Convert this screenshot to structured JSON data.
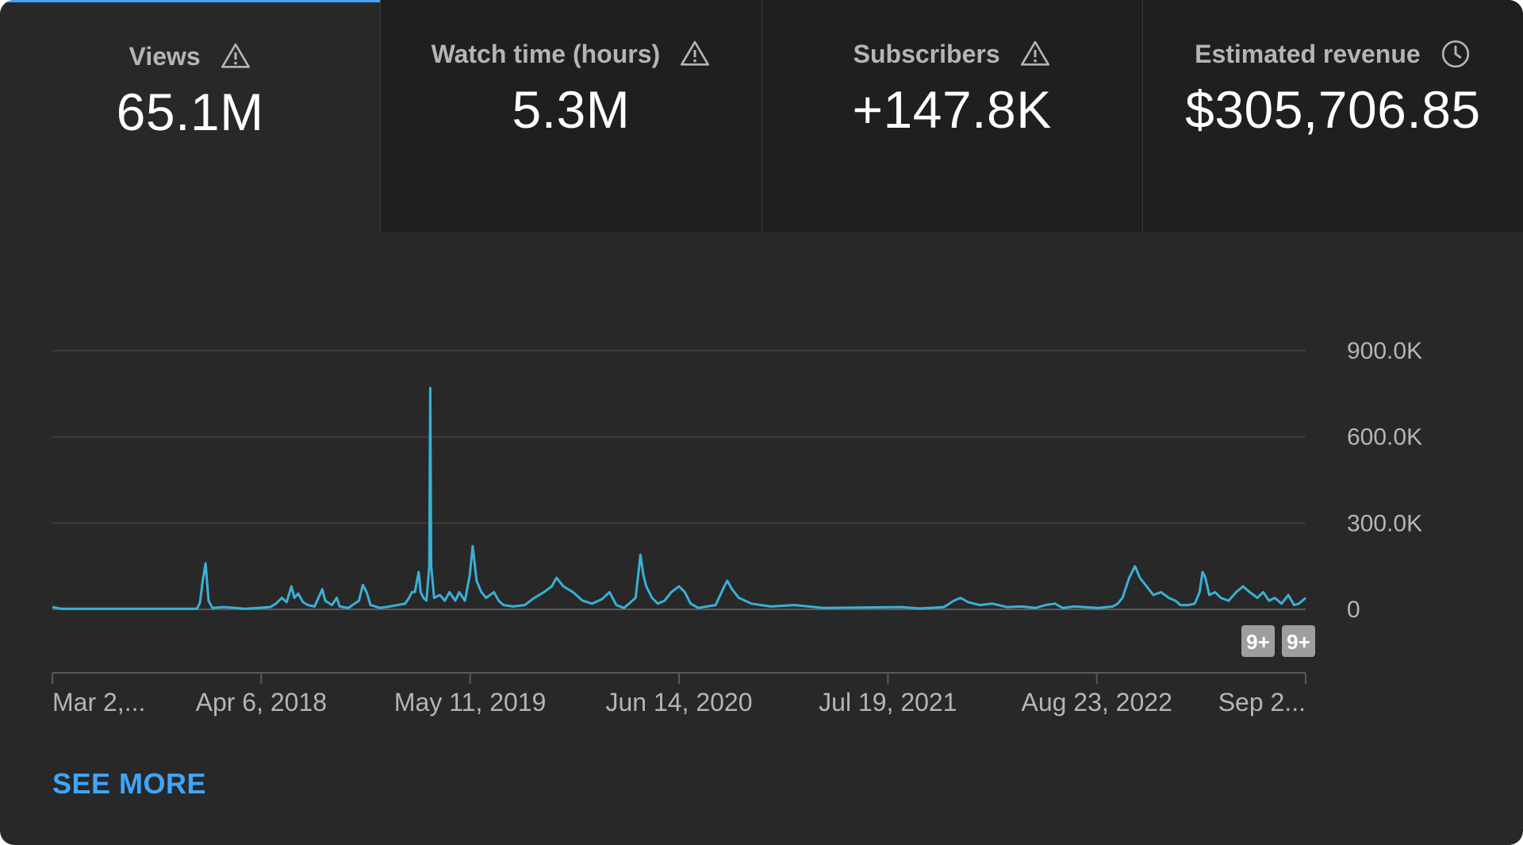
{
  "tabs": [
    {
      "label": "Views",
      "value": "65.1M",
      "icon": "warning-icon",
      "active": true
    },
    {
      "label": "Watch time (hours)",
      "value": "5.3M",
      "icon": "warning-icon",
      "active": false
    },
    {
      "label": "Subscribers",
      "value": "+147.8K",
      "icon": "warning-icon",
      "active": false
    },
    {
      "label": "Estimated revenue",
      "value": "$305,706.85",
      "icon": "clock-icon",
      "active": false
    }
  ],
  "colors": {
    "background": "#282828",
    "tab_background": "#1f1f1f",
    "accent": "#3ea6ff",
    "line": "#3ab0d6",
    "grid": "#3c3c3c",
    "badge": "#9e9e9e"
  },
  "chart_data": {
    "type": "line",
    "series": [
      {
        "values": [
          [
            0,
            8000
          ],
          [
            10,
            2000
          ],
          [
            150,
            2000
          ],
          [
            153,
            22000
          ],
          [
            156,
            100000
          ],
          [
            159,
            160000
          ],
          [
            162,
            30000
          ],
          [
            166,
            5000
          ],
          [
            178,
            8000
          ],
          [
            200,
            2000
          ],
          [
            226,
            8000
          ],
          [
            232,
            20000
          ],
          [
            238,
            40000
          ],
          [
            243,
            25000
          ],
          [
            248,
            80000
          ],
          [
            251,
            40000
          ],
          [
            255,
            55000
          ],
          [
            260,
            25000
          ],
          [
            265,
            15000
          ],
          [
            272,
            10000
          ],
          [
            280,
            70000
          ],
          [
            283,
            30000
          ],
          [
            290,
            15000
          ],
          [
            295,
            40000
          ],
          [
            298,
            10000
          ],
          [
            307,
            5000
          ],
          [
            318,
            30000
          ],
          [
            322,
            85000
          ],
          [
            326,
            60000
          ],
          [
            330,
            15000
          ],
          [
            340,
            5000
          ],
          [
            350,
            10000
          ],
          [
            366,
            20000
          ],
          [
            370,
            40000
          ],
          [
            373,
            60000
          ],
          [
            376,
            60000
          ],
          [
            380,
            130000
          ],
          [
            382,
            60000
          ],
          [
            385,
            40000
          ],
          [
            388,
            30000
          ],
          [
            391,
            150000
          ],
          [
            392,
            770000
          ],
          [
            393,
            150000
          ],
          [
            396,
            40000
          ],
          [
            402,
            50000
          ],
          [
            407,
            30000
          ],
          [
            412,
            60000
          ],
          [
            418,
            30000
          ],
          [
            422,
            60000
          ],
          [
            428,
            30000
          ],
          [
            433,
            120000
          ],
          [
            436,
            220000
          ],
          [
            440,
            100000
          ],
          [
            445,
            60000
          ],
          [
            450,
            40000
          ],
          [
            458,
            60000
          ],
          [
            463,
            30000
          ],
          [
            468,
            15000
          ],
          [
            478,
            10000
          ],
          [
            490,
            15000
          ],
          [
            500,
            40000
          ],
          [
            510,
            60000
          ],
          [
            518,
            80000
          ],
          [
            523,
            110000
          ],
          [
            530,
            80000
          ],
          [
            540,
            60000
          ],
          [
            550,
            30000
          ],
          [
            560,
            20000
          ],
          [
            570,
            35000
          ],
          [
            578,
            60000
          ],
          [
            585,
            15000
          ],
          [
            593,
            5000
          ],
          [
            605,
            40000
          ],
          [
            608,
            130000
          ],
          [
            610,
            190000
          ],
          [
            613,
            120000
          ],
          [
            616,
            80000
          ],
          [
            622,
            40000
          ],
          [
            628,
            20000
          ],
          [
            635,
            30000
          ],
          [
            642,
            60000
          ],
          [
            650,
            80000
          ],
          [
            656,
            60000
          ],
          [
            662,
            20000
          ],
          [
            670,
            5000
          ],
          [
            688,
            15000
          ],
          [
            697,
            80000
          ],
          [
            700,
            100000
          ],
          [
            705,
            70000
          ],
          [
            712,
            40000
          ],
          [
            725,
            20000
          ],
          [
            745,
            10000
          ],
          [
            770,
            15000
          ],
          [
            800,
            5000
          ],
          [
            880,
            8000
          ],
          [
            893,
            5000
          ],
          [
            900,
            3000
          ],
          [
            925,
            8000
          ],
          [
            935,
            30000
          ],
          [
            942,
            40000
          ],
          [
            950,
            25000
          ],
          [
            962,
            15000
          ],
          [
            975,
            20000
          ],
          [
            990,
            8000
          ],
          [
            1005,
            10000
          ],
          [
            1020,
            5000
          ],
          [
            1030,
            15000
          ],
          [
            1040,
            20000
          ],
          [
            1048,
            5000
          ],
          [
            1060,
            10000
          ],
          [
            1085,
            5000
          ],
          [
            1100,
            10000
          ],
          [
            1105,
            20000
          ],
          [
            1110,
            40000
          ],
          [
            1117,
            110000
          ],
          [
            1123,
            150000
          ],
          [
            1128,
            110000
          ],
          [
            1135,
            80000
          ],
          [
            1142,
            50000
          ],
          [
            1150,
            60000
          ],
          [
            1158,
            40000
          ],
          [
            1165,
            30000
          ],
          [
            1170,
            15000
          ],
          [
            1178,
            15000
          ],
          [
            1185,
            20000
          ],
          [
            1190,
            60000
          ],
          [
            1193,
            130000
          ],
          [
            1196,
            110000
          ],
          [
            1200,
            50000
          ],
          [
            1206,
            60000
          ],
          [
            1212,
            40000
          ],
          [
            1220,
            30000
          ],
          [
            1228,
            60000
          ],
          [
            1235,
            80000
          ],
          [
            1242,
            60000
          ],
          [
            1250,
            40000
          ],
          [
            1256,
            60000
          ],
          [
            1262,
            30000
          ],
          [
            1268,
            40000
          ],
          [
            1275,
            20000
          ],
          [
            1282,
            50000
          ],
          [
            1288,
            15000
          ],
          [
            1293,
            20000
          ],
          [
            1300,
            40000
          ]
        ]
      }
    ],
    "x_labels": [
      "Mar 2,...",
      "Apr 6, 2018",
      "May 11, 2019",
      "Jun 14, 2020",
      "Jul 19, 2021",
      "Aug 23, 2022",
      "Sep 2..."
    ],
    "y_ticks": [
      {
        "value": 900000,
        "label": "900.0K"
      },
      {
        "value": 600000,
        "label": "600.0K"
      },
      {
        "value": 300000,
        "label": "300.0K"
      },
      {
        "value": 0,
        "label": "0"
      }
    ],
    "ylim": [
      0,
      900000
    ],
    "grid": true,
    "badges": [
      "9+",
      "9+"
    ]
  },
  "see_more": "SEE MORE"
}
